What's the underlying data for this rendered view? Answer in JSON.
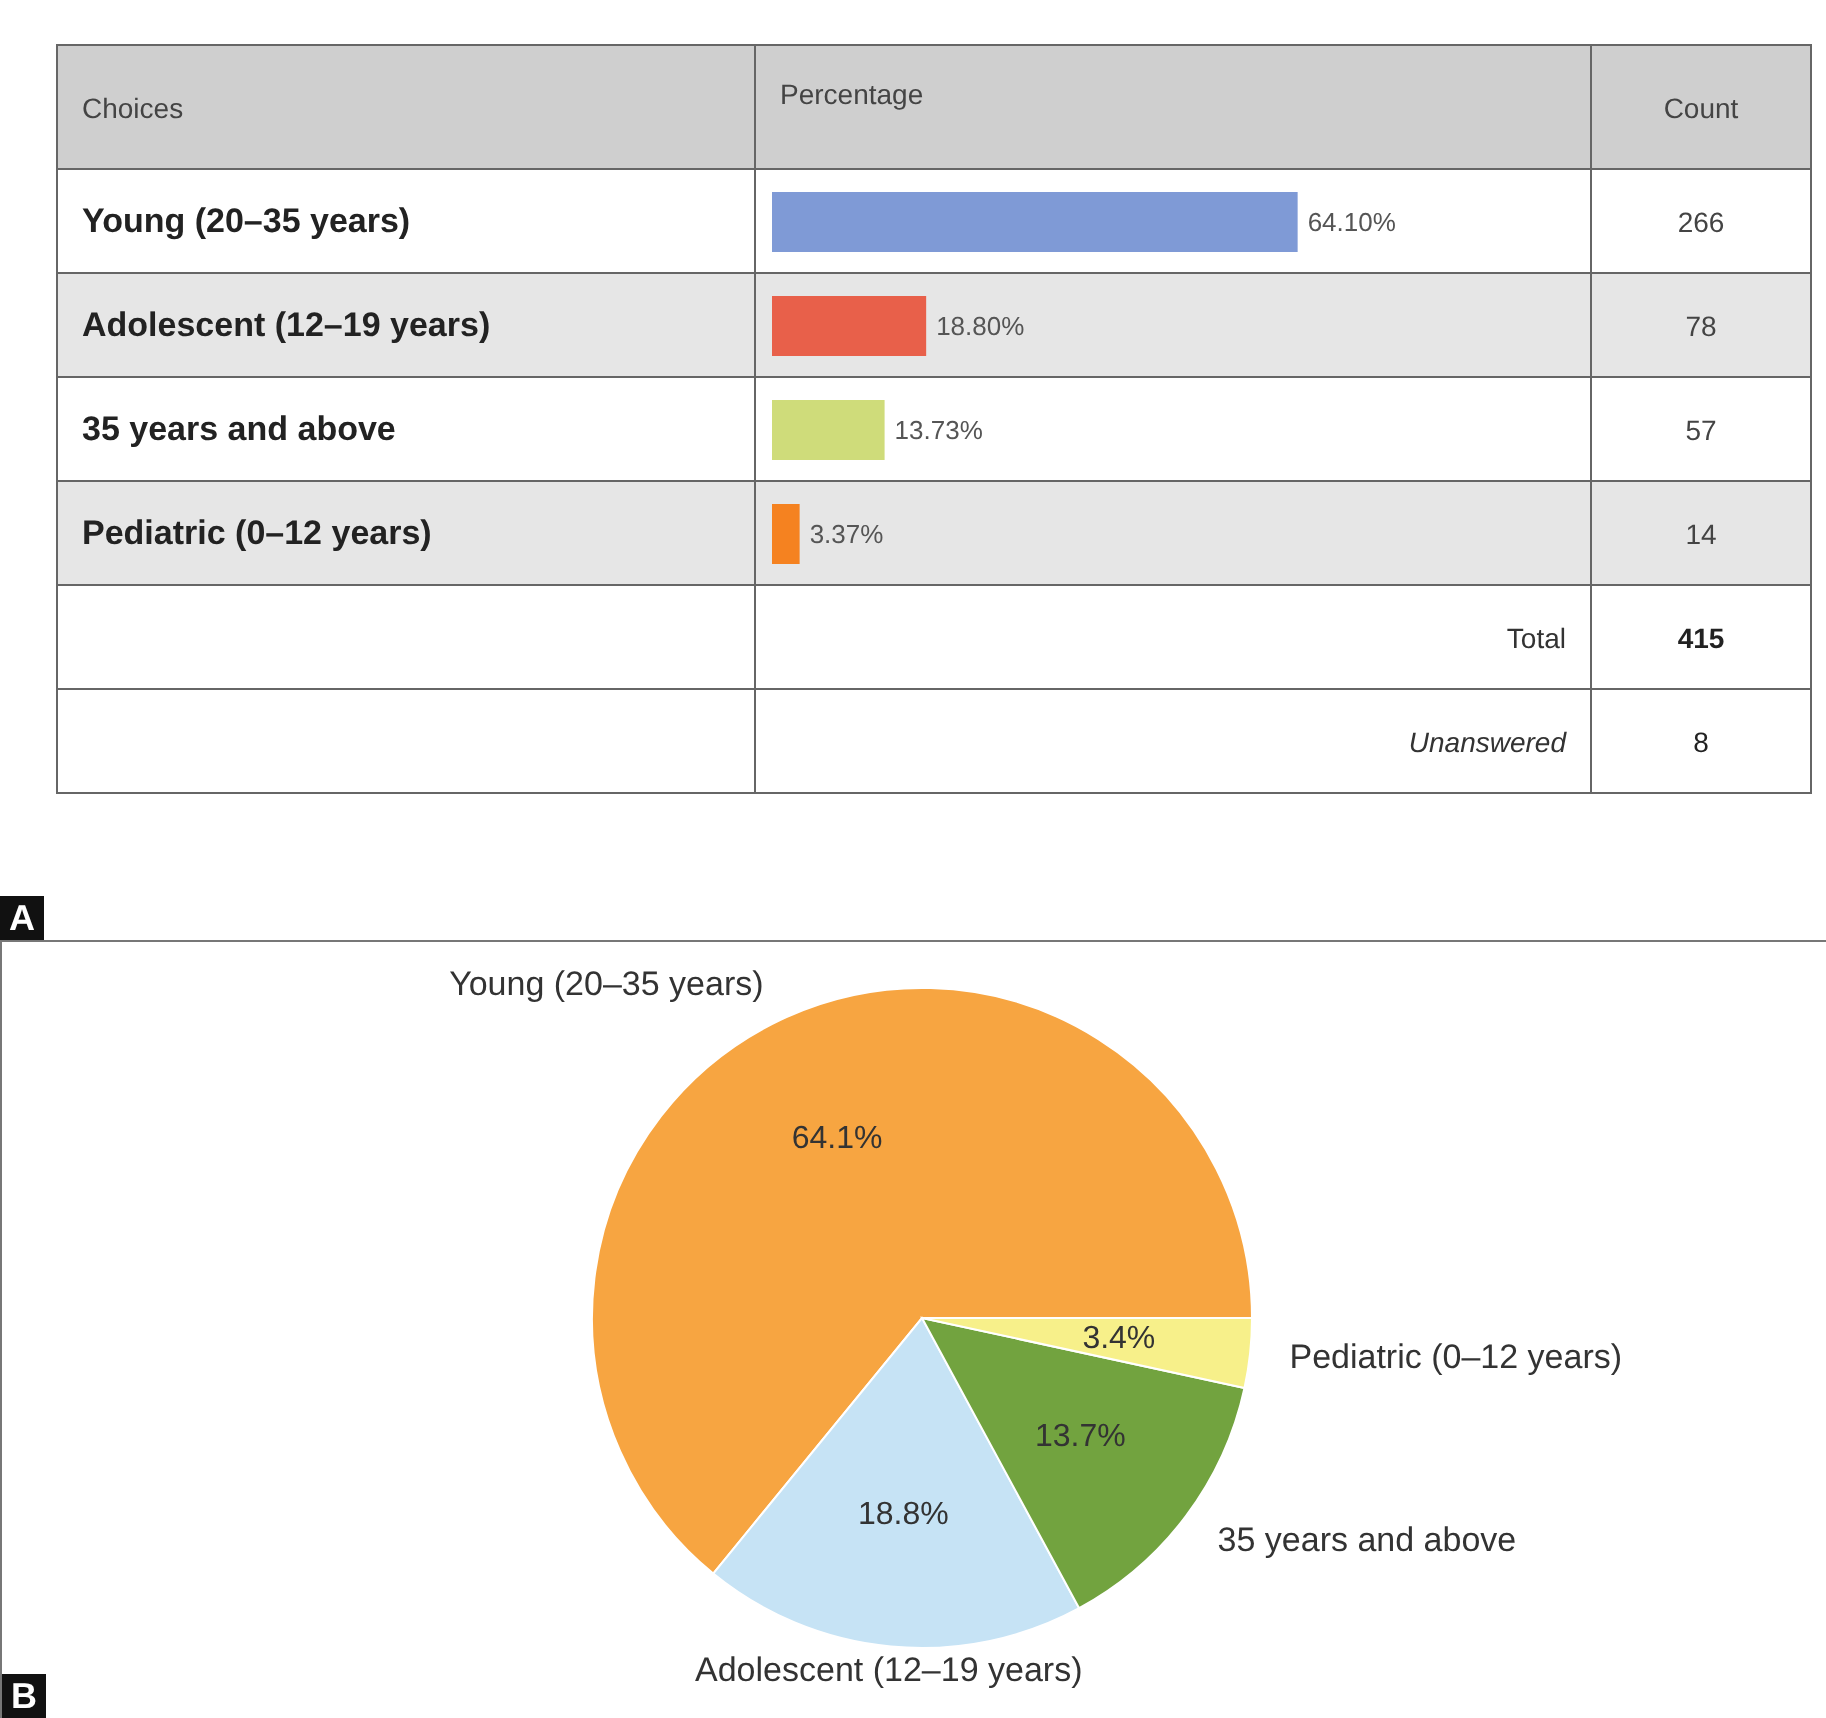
{
  "chart_data": [
    {
      "type": "bar",
      "title": "A",
      "orientation": "horizontal",
      "ylabel": "Choices",
      "xlabel": "Percentage",
      "categories": [
        "Young (20–35 years)",
        "Adolescent (12–19 years)",
        "35 years and above",
        "Pediatric (0–12 years)"
      ],
      "values": [
        64.1,
        18.8,
        13.73,
        3.37
      ],
      "colors": [
        "#7f9ad6",
        "#e8604a",
        "#cfdc7a",
        "#f58220"
      ],
      "value_labels": [
        "64.10%",
        "18.80%",
        "13.73%",
        "3.37%"
      ],
      "annotations": [
        "Count",
        "266",
        "78",
        "57",
        "14",
        "Total",
        "415",
        "Unanswered",
        "8"
      ]
    },
    {
      "type": "pie",
      "title": "B",
      "categories": [
        "Young (20–35 years)",
        "Adolescent (12–19 years)",
        "35 years and above",
        "Pediatric (0–12 years)"
      ],
      "values": [
        64.1,
        18.8,
        13.7,
        3.4
      ],
      "colors": [
        "#f7a541",
        "#c6e3f5",
        "#72a33f",
        "#f7f08a"
      ],
      "value_labels": [
        "64.1%",
        "18.8%",
        "13.7%",
        "3.4%"
      ]
    }
  ]
}
